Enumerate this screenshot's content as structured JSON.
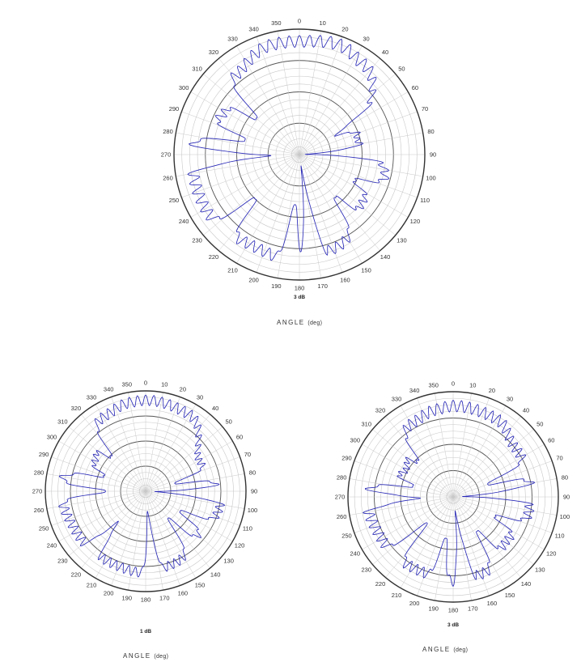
{
  "chart_data": [
    {
      "type": "line",
      "polar": true,
      "angle_ticks": [
        "0",
        "10",
        "20",
        "30",
        "40",
        "50",
        "60",
        "70",
        "80",
        "90",
        "100",
        "110",
        "120",
        "130",
        "140",
        "150",
        "160",
        "170",
        "180",
        "190",
        "200",
        "210",
        "220",
        "230",
        "240",
        "250",
        "260",
        "270",
        "280",
        "290",
        "300",
        "310",
        "320",
        "330",
        "340",
        "350"
      ],
      "xlabel": "ANGLE",
      "xlabel_unit": "(deg)",
      "annotation": "3 dB",
      "rlim": [
        0,
        1
      ],
      "pattern": {
        "lobes": [
          [
            0,
            0.95
          ],
          [
            20,
            0.98
          ],
          [
            35,
            0.93
          ],
          [
            75,
            0.5
          ],
          [
            105,
            0.74
          ],
          [
            125,
            0.66
          ],
          [
            160,
            0.84
          ],
          [
            180,
            0.9
          ],
          [
            205,
            0.86
          ],
          [
            240,
            0.91
          ],
          [
            275,
            0.9
          ],
          [
            300,
            0.72
          ],
          [
            320,
            0.85
          ],
          [
            345,
            0.95
          ]
        ],
        "nulls": [
          [
            62,
            0.35
          ],
          [
            88,
            0.05
          ],
          [
            115,
            0.5
          ],
          [
            140,
            0.45
          ],
          [
            172,
            0.1
          ],
          [
            185,
            0.4
          ],
          [
            225,
            0.5
          ],
          [
            268,
            0.25
          ],
          [
            285,
            0.45
          ],
          [
            310,
            0.45
          ]
        ],
        "ripple": 0.1,
        "ripple_deg": 5
      }
    },
    {
      "type": "line",
      "polar": true,
      "angle_ticks": [
        "0",
        "10",
        "20",
        "30",
        "40",
        "50",
        "60",
        "70",
        "80",
        "90",
        "100",
        "110",
        "120",
        "130",
        "140",
        "150",
        "160",
        "170",
        "180",
        "190",
        "200",
        "210",
        "220",
        "230",
        "240",
        "250",
        "260",
        "270",
        "280",
        "290",
        "300",
        "310",
        "320",
        "330",
        "340",
        "350"
      ],
      "xlabel": "ANGLE",
      "xlabel_unit": "(deg)",
      "annotation": "1 dB",
      "rlim": [
        0,
        1
      ],
      "pattern": {
        "lobes": [
          [
            0,
            0.96
          ],
          [
            30,
            0.93
          ],
          [
            60,
            0.65
          ],
          [
            100,
            0.8
          ],
          [
            130,
            0.72
          ],
          [
            160,
            0.82
          ],
          [
            180,
            0.86
          ],
          [
            205,
            0.84
          ],
          [
            240,
            0.85
          ],
          [
            275,
            0.9
          ],
          [
            300,
            0.62
          ],
          [
            330,
            0.9
          ],
          [
            350,
            0.95
          ]
        ],
        "nulls": [
          [
            75,
            0.3
          ],
          [
            92,
            0.1
          ],
          [
            120,
            0.4
          ],
          [
            140,
            0.35
          ],
          [
            175,
            0.2
          ],
          [
            222,
            0.45
          ],
          [
            270,
            0.4
          ],
          [
            290,
            0.45
          ],
          [
            315,
            0.5
          ]
        ],
        "ripple": 0.11,
        "ripple_deg": 5
      }
    },
    {
      "type": "line",
      "polar": true,
      "angle_ticks": [
        "0",
        "10",
        "20",
        "30",
        "40",
        "50",
        "60",
        "70",
        "80",
        "90",
        "100",
        "110",
        "120",
        "130",
        "140",
        "150",
        "160",
        "170",
        "180",
        "190",
        "200",
        "210",
        "220",
        "230",
        "240",
        "250",
        "260",
        "270",
        "280",
        "290",
        "300",
        "310",
        "320",
        "330",
        "340",
        "350"
      ],
      "xlabel": "ANGLE",
      "xlabel_unit": "(deg)",
      "annotation": "3 dB",
      "rlim": [
        0,
        1
      ],
      "pattern": {
        "lobes": [
          [
            0,
            0.92
          ],
          [
            30,
            0.9
          ],
          [
            50,
            0.8
          ],
          [
            100,
            0.78
          ],
          [
            130,
            0.7
          ],
          [
            160,
            0.83
          ],
          [
            180,
            0.85
          ],
          [
            200,
            0.82
          ],
          [
            240,
            0.84
          ],
          [
            270,
            0.88
          ],
          [
            300,
            0.55
          ],
          [
            330,
            0.85
          ],
          [
            350,
            0.9
          ]
        ],
        "nulls": [
          [
            70,
            0.35
          ],
          [
            88,
            0.1
          ],
          [
            115,
            0.45
          ],
          [
            145,
            0.4
          ],
          [
            172,
            0.15
          ],
          [
            190,
            0.4
          ],
          [
            225,
            0.35
          ],
          [
            268,
            0.35
          ],
          [
            285,
            0.4
          ],
          [
            315,
            0.5
          ]
        ],
        "ripple": 0.12,
        "ripple_deg": 5
      }
    }
  ]
}
